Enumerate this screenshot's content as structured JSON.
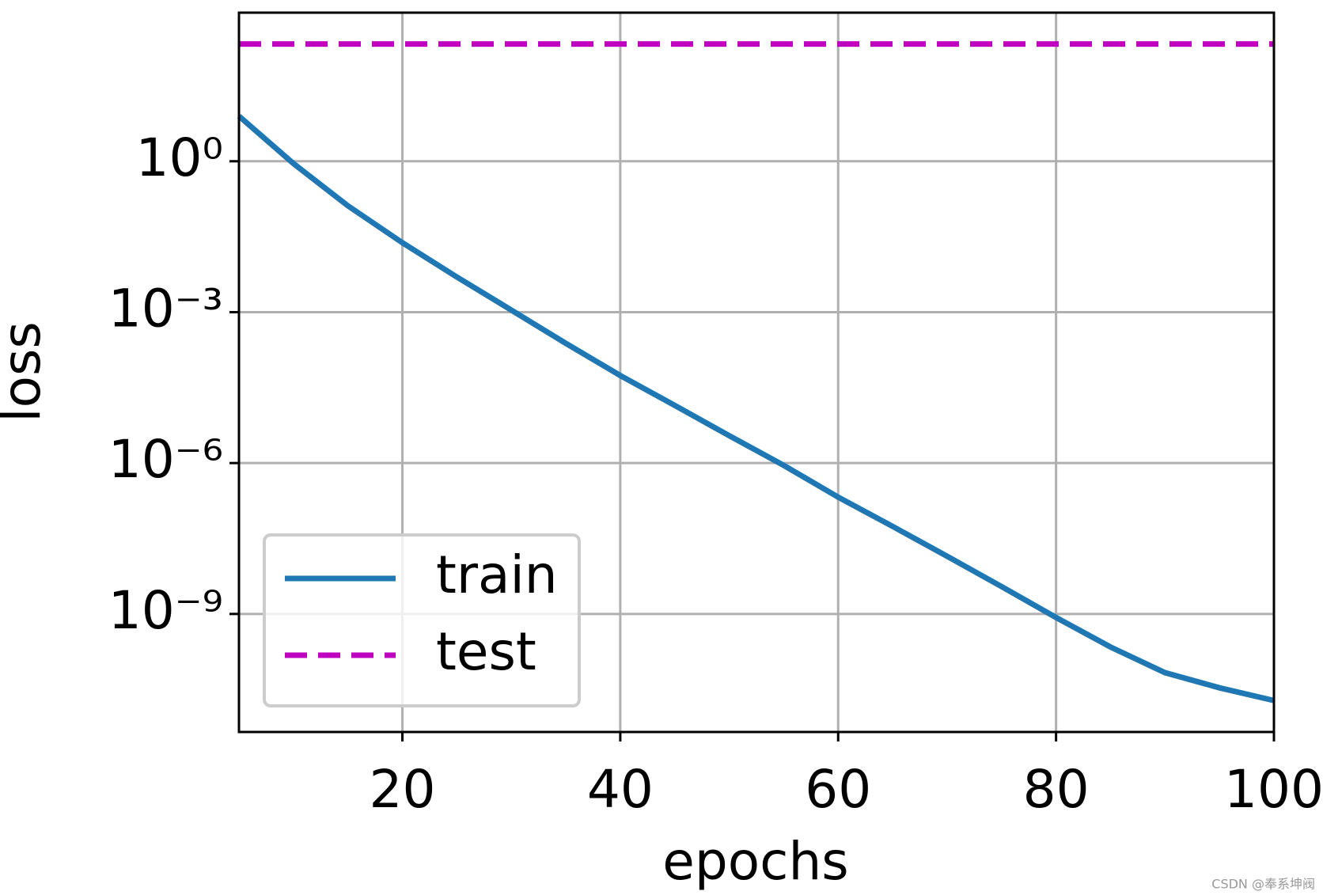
{
  "chart_data": {
    "type": "line",
    "xlabel": "epochs",
    "ylabel": "loss",
    "x": [
      5,
      10,
      15,
      20,
      25,
      30,
      35,
      40,
      45,
      50,
      55,
      60,
      65,
      70,
      75,
      80,
      85,
      90,
      95,
      100
    ],
    "series": [
      {
        "name": "train",
        "color": "#1f77b4",
        "linestyle": "solid",
        "values": [
          7.9,
          0.9,
          0.13,
          0.024,
          0.005,
          0.0011,
          0.00024,
          5.5e-05,
          1.4e-05,
          3.5e-06,
          9e-07,
          2.1e-07,
          5.5e-08,
          1.4e-08,
          3.5e-09,
          8.5e-10,
          2.2e-10,
          6.8e-11,
          3.4e-11,
          1.9e-11
        ]
      },
      {
        "name": "test",
        "color": "#bf00bf",
        "linestyle": "dashed",
        "values": [
          214,
          214,
          214,
          214,
          214,
          214,
          214,
          214,
          214,
          214,
          214,
          214,
          214,
          214,
          214,
          214,
          214,
          214,
          214,
          214
        ]
      }
    ],
    "xlim": [
      5,
      100
    ],
    "xticks": [
      20,
      40,
      60,
      80,
      100
    ],
    "ylim": [
      4.5e-12,
      900
    ],
    "yscale": "log",
    "yticks": [
      {
        "value": 1,
        "label": "10⁰"
      },
      {
        "value": 0.001,
        "label": "10⁻³"
      },
      {
        "value": 1e-06,
        "label": "10⁻⁶"
      },
      {
        "value": 1e-09,
        "label": "10⁻⁹"
      }
    ],
    "grid": true,
    "legend": "lower left"
  },
  "watermark": "CSDN @奉系坤阀"
}
